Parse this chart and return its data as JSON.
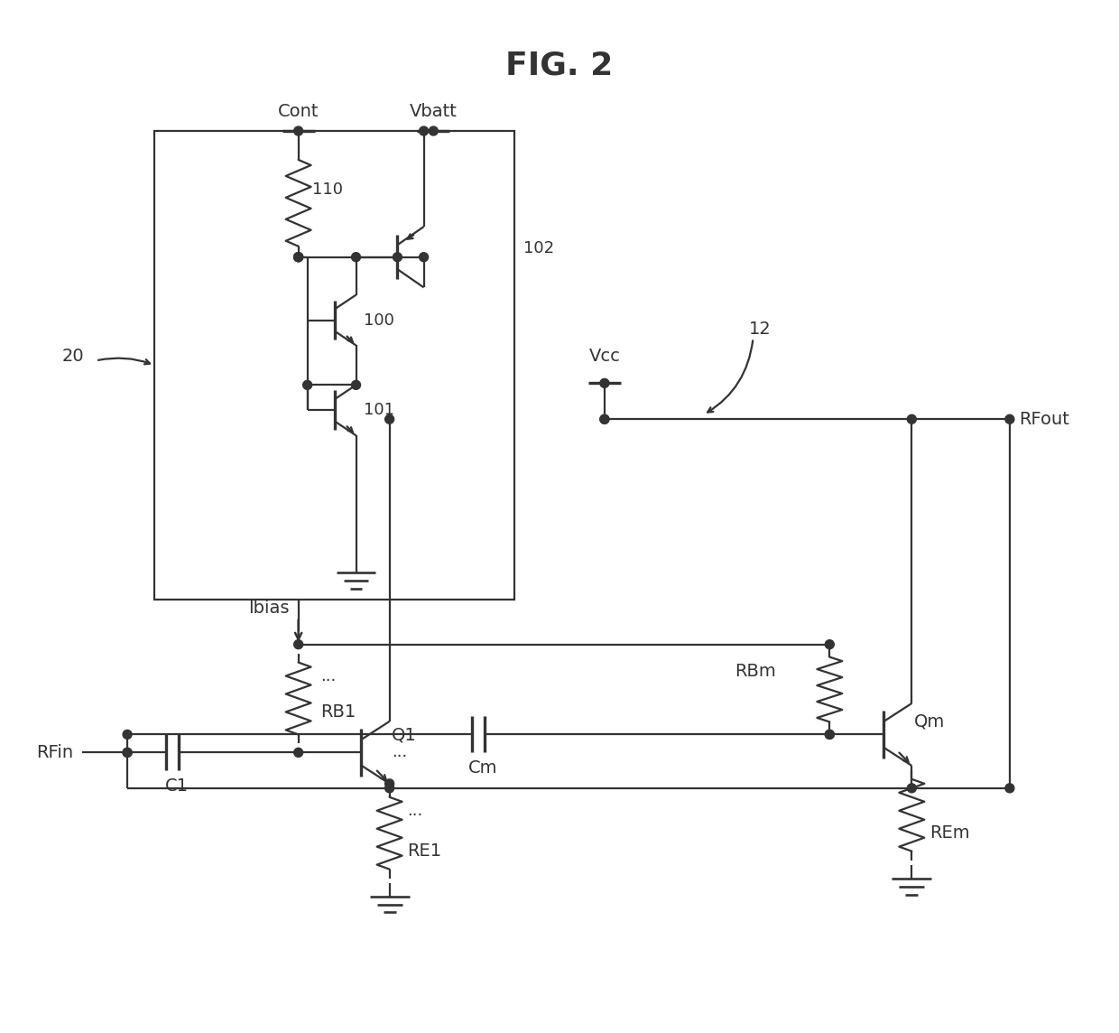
{
  "title": "FIG. 2",
  "title_fontsize": 26,
  "label_fontsize": 14,
  "ref_fontsize": 13,
  "bg_color": "#ffffff",
  "line_color": "#333333",
  "line_width": 1.6,
  "fig_width": 12.4,
  "fig_height": 11.44,
  "xlim": [
    0,
    124
  ],
  "ylim": [
    0,
    114.4
  ]
}
